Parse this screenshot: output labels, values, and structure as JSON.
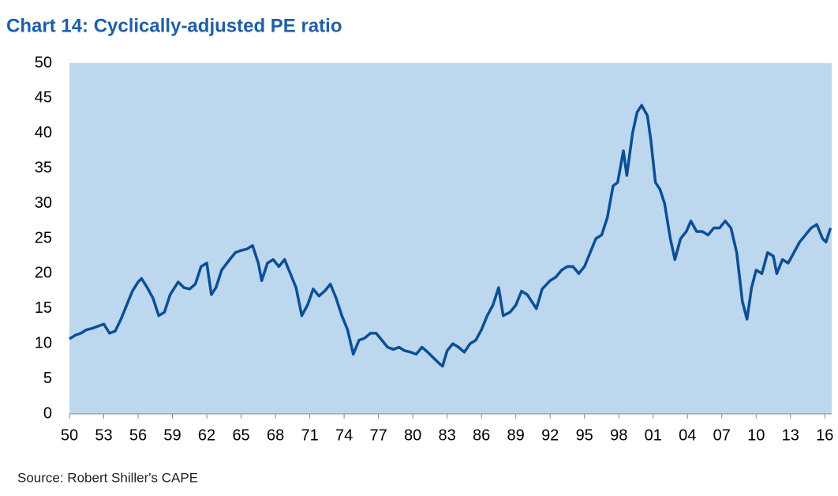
{
  "chart_data": {
    "type": "line",
    "title": "Chart 14: Cyclically-adjusted PE ratio",
    "source": "Source: Robert Shiller's CAPE",
    "color": "#0b4f96",
    "background": "#bdd7ee",
    "x": [
      1950,
      1950.5,
      1951,
      1951.5,
      1952,
      1952.5,
      1953,
      1953.5,
      1954,
      1954.5,
      1955,
      1955.5,
      1956,
      1956.3,
      1956.8,
      1957.3,
      1957.8,
      1958.3,
      1958.8,
      1959.5,
      1960,
      1960.5,
      1961,
      1961.5,
      1962,
      1962.4,
      1962.8,
      1963.3,
      1964,
      1964.5,
      1965,
      1965.5,
      1966,
      1966.5,
      1966.8,
      1967.3,
      1967.8,
      1968.3,
      1968.8,
      1969.3,
      1969.8,
      1970.3,
      1970.8,
      1971.3,
      1971.8,
      1972.3,
      1972.8,
      1973.3,
      1973.8,
      1974.3,
      1974.8,
      1975.3,
      1975.8,
      1976.3,
      1976.8,
      1977.3,
      1977.8,
      1978.3,
      1978.8,
      1979.3,
      1979.8,
      1980.3,
      1980.8,
      1981.3,
      1981.8,
      1982.3,
      1982.6,
      1983,
      1983.5,
      1984,
      1984.5,
      1985,
      1985.5,
      1986,
      1986.5,
      1987,
      1987.5,
      1987.9,
      1988.5,
      1989,
      1989.5,
      1990,
      1990.8,
      1991.3,
      1992,
      1992.5,
      1993,
      1993.5,
      1994,
      1994.5,
      1995,
      1995.5,
      1996,
      1996.5,
      1997,
      1997.5,
      1997.9,
      1998.4,
      1998.7,
      1999.2,
      1999.6,
      2000,
      2000.5,
      2000.8,
      2001.2,
      2001.6,
      2002,
      2002.5,
      2002.9,
      2003.4,
      2003.9,
      2004.3,
      2004.8,
      2005.3,
      2005.8,
      2006.3,
      2006.8,
      2007.3,
      2007.8,
      2008.3,
      2008.8,
      2009.2,
      2009.6,
      2010,
      2010.5,
      2011,
      2011.5,
      2011.8,
      2012.3,
      2012.8,
      2013.3,
      2013.8,
      2014.3,
      2014.8,
      2015.3,
      2015.8,
      2016.1,
      2016.5
    ],
    "values": [
      10.7,
      11.2,
      11.5,
      12,
      12.2,
      12.5,
      12.8,
      11.5,
      11.8,
      13.5,
      15.5,
      17.5,
      18.8,
      19.3,
      18,
      16.5,
      14,
      14.5,
      17,
      18.8,
      18,
      17.8,
      18.5,
      21,
      21.5,
      17,
      18,
      20.5,
      22,
      23,
      23.3,
      23.5,
      24,
      21.5,
      19,
      21.5,
      22,
      21,
      22,
      20,
      18,
      14,
      15.5,
      17.8,
      16.8,
      17.5,
      18.5,
      16.5,
      14,
      12,
      8.5,
      10.5,
      10.8,
      11.5,
      11.5,
      10.5,
      9.5,
      9.2,
      9.5,
      9,
      8.8,
      8.5,
      9.5,
      8.8,
      8,
      7.2,
      6.8,
      9,
      10,
      9.5,
      8.8,
      10,
      10.5,
      12,
      14,
      15.5,
      18,
      14,
      14.5,
      15.5,
      17.5,
      17,
      15,
      17.8,
      19,
      19.5,
      20.5,
      21,
      21,
      20,
      21,
      23,
      25,
      25.5,
      28,
      32.5,
      33,
      37.5,
      34,
      40,
      43,
      44,
      42.5,
      39,
      33,
      32,
      30,
      25,
      22,
      25,
      26,
      27.5,
      26,
      26,
      25.5,
      26.5,
      26.5,
      27.5,
      26.5,
      23,
      16,
      13.5,
      18,
      20.5,
      20,
      23,
      22.5,
      20,
      22,
      21.5,
      23,
      24.5,
      25.5,
      26.5,
      27,
      25,
      24.5,
      26.5
    ],
    "xlim": [
      1950,
      2016.6
    ],
    "ylim": [
      0,
      50
    ],
    "yticks": [
      0,
      5,
      10,
      15,
      20,
      25,
      30,
      35,
      40,
      45,
      50
    ],
    "xticks": [
      {
        "value": 1950,
        "label": "50"
      },
      {
        "value": 1953,
        "label": "53"
      },
      {
        "value": 1956,
        "label": "56"
      },
      {
        "value": 1959,
        "label": "59"
      },
      {
        "value": 1962,
        "label": "62"
      },
      {
        "value": 1965,
        "label": "65"
      },
      {
        "value": 1968,
        "label": "68"
      },
      {
        "value": 1971,
        "label": "71"
      },
      {
        "value": 1974,
        "label": "74"
      },
      {
        "value": 1977,
        "label": "77"
      },
      {
        "value": 1980,
        "label": "80"
      },
      {
        "value": 1983,
        "label": "83"
      },
      {
        "value": 1986,
        "label": "86"
      },
      {
        "value": 1989,
        "label": "89"
      },
      {
        "value": 1992,
        "label": "92"
      },
      {
        "value": 1995,
        "label": "95"
      },
      {
        "value": 1998,
        "label": "98"
      },
      {
        "value": 2001,
        "label": "01"
      },
      {
        "value": 2004,
        "label": "04"
      },
      {
        "value": 2007,
        "label": "07"
      },
      {
        "value": 2010,
        "label": "10"
      },
      {
        "value": 2013,
        "label": "13"
      },
      {
        "value": 2016,
        "label": "16"
      }
    ]
  }
}
